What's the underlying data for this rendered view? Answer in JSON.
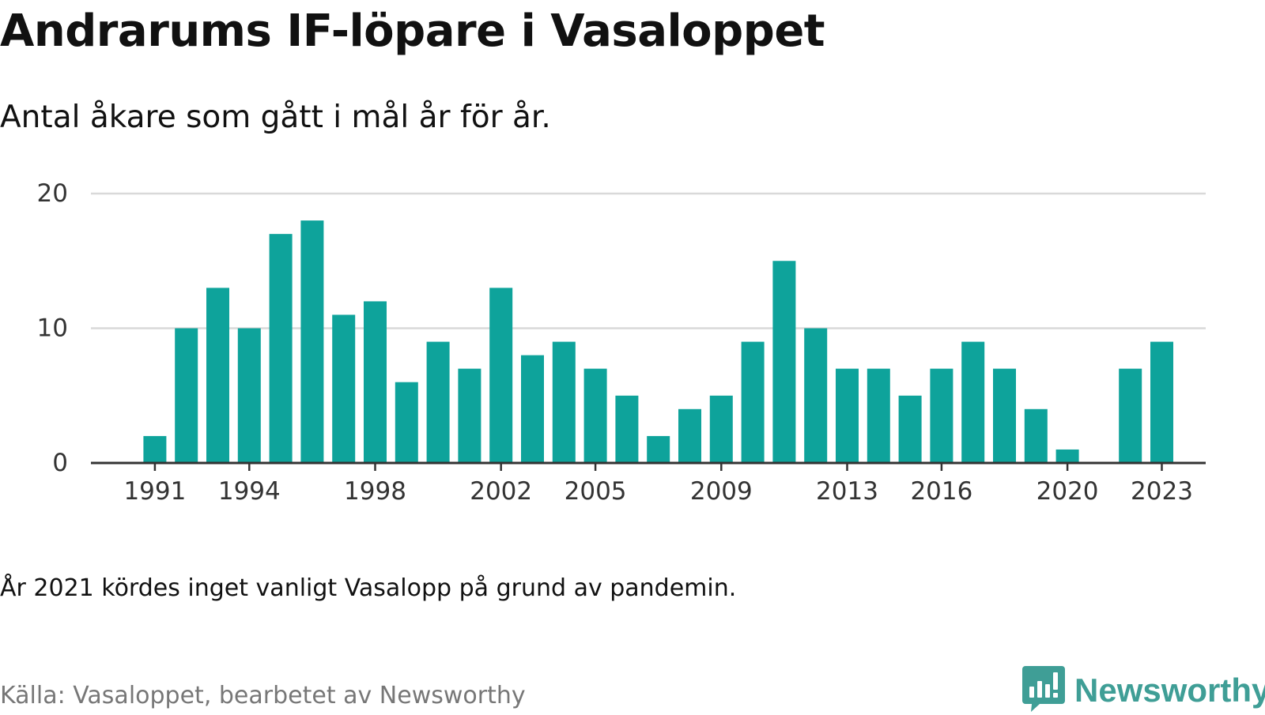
{
  "title": "Andrarums IF-löpare i Vasaloppet",
  "subtitle": "Antal åkare som gått i mål år för år.",
  "note": "År 2021 kördes inget vanligt Vasalopp på grund av pandemin.",
  "source": "Källa: Vasaloppet, bearbetet av Newsworthy",
  "brand": {
    "name": "Newsworthy",
    "icon": "newsworthy-logo-icon"
  },
  "colors": {
    "bar": "#0ea39b",
    "grid": "#d9d9d9",
    "axis": "#333333",
    "tick_text": "#333333",
    "brand": "#3f9e96",
    "source_text": "#777777"
  },
  "chart_data": {
    "type": "bar",
    "title": "Andrarums IF-löpare i Vasaloppet",
    "subtitle": "Antal åkare som gått i mål år för år.",
    "xlabel": "",
    "ylabel": "",
    "categories": [
      1991,
      1992,
      1993,
      1994,
      1995,
      1996,
      1997,
      1998,
      1999,
      2000,
      2001,
      2002,
      2003,
      2004,
      2005,
      2006,
      2007,
      2008,
      2009,
      2010,
      2011,
      2012,
      2013,
      2014,
      2015,
      2016,
      2017,
      2018,
      2019,
      2020,
      2021,
      2022,
      2023
    ],
    "values": [
      2,
      10,
      13,
      10,
      17,
      18,
      11,
      12,
      6,
      9,
      7,
      13,
      8,
      9,
      7,
      5,
      2,
      4,
      5,
      9,
      15,
      10,
      7,
      7,
      5,
      7,
      9,
      7,
      4,
      1,
      0,
      7,
      9
    ],
    "x_tick_labels": [
      "1991",
      "1994",
      "1998",
      "2002",
      "2005",
      "2009",
      "2013",
      "2016",
      "2020",
      "2023"
    ],
    "y_ticks": [
      0,
      10,
      20
    ],
    "ylim": [
      0,
      20
    ],
    "grid": true,
    "legend": "none"
  }
}
